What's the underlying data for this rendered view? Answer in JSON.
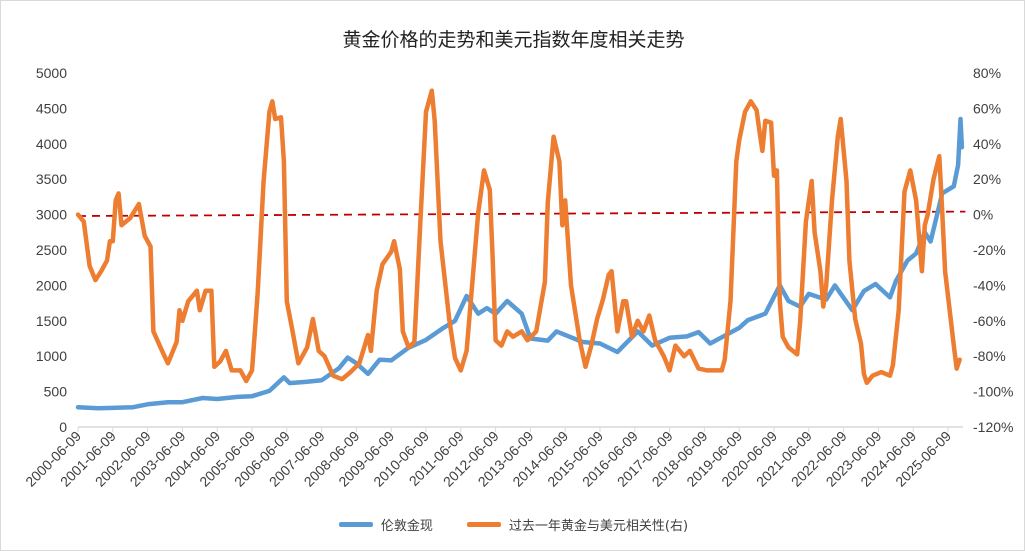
{
  "chart_data": {
    "type": "line",
    "title": "黄金价格的走势和美元指数年度相关走势",
    "left_axis": {
      "min": 0,
      "max": 5000,
      "step": 500,
      "ticks": [
        "0",
        "500",
        "1000",
        "1500",
        "2000",
        "2500",
        "3000",
        "3500",
        "4000",
        "4500",
        "5000"
      ]
    },
    "right_axis": {
      "min": -120,
      "max": 80,
      "step": 20,
      "ticks": [
        "-120%",
        "-100%",
        "-80%",
        "-60%",
        "-40%",
        "-20%",
        "0%",
        "20%",
        "40%",
        "60%",
        "80%"
      ]
    },
    "x_ticks": [
      "2000-06-09",
      "2001-06-09",
      "2002-06-09",
      "2003-06-09",
      "2004-06-09",
      "2005-06-09",
      "2006-06-09",
      "2007-06-09",
      "2008-06-09",
      "2009-06-09",
      "2010-06-09",
      "2011-06-09",
      "2012-06-09",
      "2013-06-09",
      "2014-06-09",
      "2015-06-09",
      "2016-06-09",
      "2017-06-09",
      "2018-06-09",
      "2019-06-09",
      "2020-06-09",
      "2021-06-09",
      "2022-06-09",
      "2023-06-09",
      "2024-06-09",
      "2025-06-09"
    ],
    "grid": false,
    "legend": "bottom",
    "series": [
      {
        "name": "伦敦金现",
        "axis": "left",
        "color": "#5b9bd5",
        "points": [
          [
            "2000-06",
            280
          ],
          [
            "2001-01",
            265
          ],
          [
            "2001-06",
            270
          ],
          [
            "2002-01",
            280
          ],
          [
            "2002-06",
            320
          ],
          [
            "2003-01",
            350
          ],
          [
            "2003-06",
            350
          ],
          [
            "2004-01",
            410
          ],
          [
            "2004-06",
            395
          ],
          [
            "2005-01",
            425
          ],
          [
            "2005-06",
            435
          ],
          [
            "2005-12",
            510
          ],
          [
            "2006-05",
            700
          ],
          [
            "2006-07",
            620
          ],
          [
            "2007-01",
            640
          ],
          [
            "2007-06",
            660
          ],
          [
            "2007-12",
            830
          ],
          [
            "2008-03",
            980
          ],
          [
            "2008-06",
            900
          ],
          [
            "2008-10",
            750
          ],
          [
            "2009-02",
            950
          ],
          [
            "2009-06",
            940
          ],
          [
            "2009-12",
            1120
          ],
          [
            "2010-06",
            1230
          ],
          [
            "2010-12",
            1400
          ],
          [
            "2011-04",
            1500
          ],
          [
            "2011-08",
            1850
          ],
          [
            "2011-12",
            1600
          ],
          [
            "2012-03",
            1680
          ],
          [
            "2012-06",
            1600
          ],
          [
            "2012-10",
            1780
          ],
          [
            "2013-03",
            1600
          ],
          [
            "2013-06",
            1250
          ],
          [
            "2013-12",
            1220
          ],
          [
            "2014-03",
            1350
          ],
          [
            "2014-12",
            1200
          ],
          [
            "2015-06",
            1180
          ],
          [
            "2015-12",
            1060
          ],
          [
            "2016-07",
            1350
          ],
          [
            "2016-12",
            1150
          ],
          [
            "2017-06",
            1260
          ],
          [
            "2017-12",
            1280
          ],
          [
            "2018-04",
            1340
          ],
          [
            "2018-08",
            1180
          ],
          [
            "2019-01",
            1290
          ],
          [
            "2019-06",
            1400
          ],
          [
            "2019-09",
            1510
          ],
          [
            "2020-03",
            1600
          ],
          [
            "2020-08",
            2000
          ],
          [
            "2020-11",
            1780
          ],
          [
            "2021-03",
            1700
          ],
          [
            "2021-06",
            1880
          ],
          [
            "2021-12",
            1800
          ],
          [
            "2022-03",
            2000
          ],
          [
            "2022-09",
            1650
          ],
          [
            "2023-01",
            1920
          ],
          [
            "2023-05",
            2020
          ],
          [
            "2023-10",
            1830
          ],
          [
            "2023-12",
            2060
          ],
          [
            "2024-04",
            2350
          ],
          [
            "2024-07",
            2450
          ],
          [
            "2024-10",
            2750
          ],
          [
            "2024-12",
            2620
          ],
          [
            "2025-04",
            3300
          ],
          [
            "2025-06",
            3350
          ],
          [
            "2025-08",
            3400
          ],
          [
            "2025-09-15",
            3700
          ],
          [
            "2025-10-10",
            4350
          ],
          [
            "2025-10-25",
            3950
          ]
        ]
      },
      {
        "name": "过去一年黄金与美元相关性(右)",
        "axis": "right",
        "color": "#ed7d31",
        "points": [
          [
            "2000-06",
            0
          ],
          [
            "2000-08",
            -4
          ],
          [
            "2000-10",
            -29
          ],
          [
            "2000-12",
            -37
          ],
          [
            "2001-02",
            -32
          ],
          [
            "2001-04",
            -26
          ],
          [
            "2001-05",
            -15
          ],
          [
            "2001-06",
            -15
          ],
          [
            "2001-07",
            8
          ],
          [
            "2001-08",
            12
          ],
          [
            "2001-09",
            -6
          ],
          [
            "2001-12",
            -2
          ],
          [
            "2002-03",
            6
          ],
          [
            "2002-05",
            -12
          ],
          [
            "2002-07",
            -18
          ],
          [
            "2002-08",
            -66
          ],
          [
            "2002-11",
            -77
          ],
          [
            "2003-01",
            -84
          ],
          [
            "2003-04",
            -72
          ],
          [
            "2003-05",
            -54
          ],
          [
            "2003-06",
            -60
          ],
          [
            "2003-08",
            -49
          ],
          [
            "2003-11",
            -43
          ],
          [
            "2003-12",
            -54
          ],
          [
            "2004-02",
            -43
          ],
          [
            "2004-04",
            -43
          ],
          [
            "2004-05",
            -86
          ],
          [
            "2004-07",
            -83
          ],
          [
            "2004-09",
            -77
          ],
          [
            "2004-11",
            -88
          ],
          [
            "2005-02",
            -88
          ],
          [
            "2005-04",
            -94
          ],
          [
            "2005-06",
            -88
          ],
          [
            "2005-07",
            -66
          ],
          [
            "2005-08",
            -43
          ],
          [
            "2005-10",
            19
          ],
          [
            "2005-12",
            58
          ],
          [
            "2006-01",
            64
          ],
          [
            "2006-02",
            54
          ],
          [
            "2006-04",
            55
          ],
          [
            "2006-05",
            30
          ],
          [
            "2006-06",
            -49
          ],
          [
            "2006-08",
            -66
          ],
          [
            "2006-10",
            -84
          ],
          [
            "2007-01",
            -75
          ],
          [
            "2007-03",
            -59
          ],
          [
            "2007-05",
            -77
          ],
          [
            "2007-07",
            -80
          ],
          [
            "2007-10",
            -91
          ],
          [
            "2008-01",
            -93
          ],
          [
            "2008-04",
            -89
          ],
          [
            "2008-07",
            -84
          ],
          [
            "2008-10",
            -68
          ],
          [
            "2008-11",
            -77
          ],
          [
            "2009-01",
            -43
          ],
          [
            "2009-03",
            -28
          ],
          [
            "2009-06",
            -21
          ],
          [
            "2009-07",
            -15
          ],
          [
            "2009-09",
            -31
          ],
          [
            "2009-10",
            -66
          ],
          [
            "2009-12",
            -75
          ],
          [
            "2010-02",
            -72
          ],
          [
            "2010-04",
            -6
          ],
          [
            "2010-06",
            58
          ],
          [
            "2010-08",
            70
          ],
          [
            "2010-09",
            53
          ],
          [
            "2010-11",
            -15
          ],
          [
            "2011-02",
            -59
          ],
          [
            "2011-04",
            -81
          ],
          [
            "2011-06",
            -88
          ],
          [
            "2011-08",
            -77
          ],
          [
            "2011-10",
            -38
          ],
          [
            "2011-12",
            1
          ],
          [
            "2012-02",
            25
          ],
          [
            "2012-04",
            14
          ],
          [
            "2012-05",
            -25
          ],
          [
            "2012-06",
            -71
          ],
          [
            "2012-08",
            -74
          ],
          [
            "2012-10",
            -66
          ],
          [
            "2012-12",
            -69
          ],
          [
            "2013-03",
            -66
          ],
          [
            "2013-05",
            -71
          ],
          [
            "2013-08",
            -66
          ],
          [
            "2013-11",
            -38
          ],
          [
            "2013-12",
            7
          ],
          [
            "2014-02",
            44
          ],
          [
            "2014-04",
            30
          ],
          [
            "2014-05",
            -6
          ],
          [
            "2014-06",
            8
          ],
          [
            "2014-08",
            -40
          ],
          [
            "2014-11",
            -71
          ],
          [
            "2015-01",
            -86
          ],
          [
            "2015-03",
            -74
          ],
          [
            "2015-05",
            -59
          ],
          [
            "2015-07",
            -48
          ],
          [
            "2015-09",
            -34
          ],
          [
            "2015-10",
            -32
          ],
          [
            "2015-12",
            -66
          ],
          [
            "2016-02",
            -49
          ],
          [
            "2016-03",
            -49
          ],
          [
            "2016-05",
            -69
          ],
          [
            "2016-07",
            -60
          ],
          [
            "2016-09",
            -66
          ],
          [
            "2016-11",
            -57
          ],
          [
            "2017-01",
            -71
          ],
          [
            "2017-04",
            -80
          ],
          [
            "2017-06",
            -88
          ],
          [
            "2017-08",
            -74
          ],
          [
            "2017-11",
            -80
          ],
          [
            "2018-01",
            -77
          ],
          [
            "2018-04",
            -87
          ],
          [
            "2018-07",
            -88
          ],
          [
            "2018-10",
            -88
          ],
          [
            "2018-12",
            -88
          ],
          [
            "2019-01",
            -82
          ],
          [
            "2019-03",
            -49
          ],
          [
            "2019-05",
            30
          ],
          [
            "2019-06",
            42
          ],
          [
            "2019-08",
            58
          ],
          [
            "2019-10",
            64
          ],
          [
            "2019-12",
            59
          ],
          [
            "2020-01",
            47
          ],
          [
            "2020-02",
            36
          ],
          [
            "2020-03",
            53
          ],
          [
            "2020-05",
            52
          ],
          [
            "2020-06",
            22
          ],
          [
            "2020-07",
            25
          ],
          [
            "2020-08",
            -49
          ],
          [
            "2020-09",
            -69
          ],
          [
            "2020-11",
            -75
          ],
          [
            "2021-02",
            -79
          ],
          [
            "2021-03",
            -61
          ],
          [
            "2021-05",
            -4
          ],
          [
            "2021-07",
            19
          ],
          [
            "2021-08",
            -10
          ],
          [
            "2021-10",
            -32
          ],
          [
            "2021-11",
            -52
          ],
          [
            "2021-12",
            -40
          ],
          [
            "2022-02",
            8
          ],
          [
            "2022-04",
            44
          ],
          [
            "2022-05",
            54
          ],
          [
            "2022-07",
            19
          ],
          [
            "2022-08",
            -26
          ],
          [
            "2022-10",
            -59
          ],
          [
            "2022-12",
            -73
          ],
          [
            "2023-01",
            -90
          ],
          [
            "2023-02",
            -95
          ],
          [
            "2023-04",
            -91
          ],
          [
            "2023-07",
            -89
          ],
          [
            "2023-10",
            -91
          ],
          [
            "2023-11",
            -85
          ],
          [
            "2024-01",
            -54
          ],
          [
            "2024-03",
            13
          ],
          [
            "2024-05",
            25
          ],
          [
            "2024-07",
            8
          ],
          [
            "2024-09",
            -32
          ],
          [
            "2024-10",
            -6
          ],
          [
            "2024-11",
            0
          ],
          [
            "2025-01",
            20
          ],
          [
            "2025-03",
            33
          ],
          [
            "2025-04",
            2
          ],
          [
            "2025-05",
            -32
          ],
          [
            "2025-07",
            -60
          ],
          [
            "2025-08",
            -74
          ],
          [
            "2025-09",
            -87
          ],
          [
            "2025-10",
            -82
          ]
        ]
      }
    ],
    "trendline": {
      "axis": "right",
      "type": "linear",
      "color": "#c00000",
      "style": "dashed",
      "from": [
        "2000-06",
        -0.8
      ],
      "to": [
        "2025-12",
        1.7
      ]
    }
  }
}
